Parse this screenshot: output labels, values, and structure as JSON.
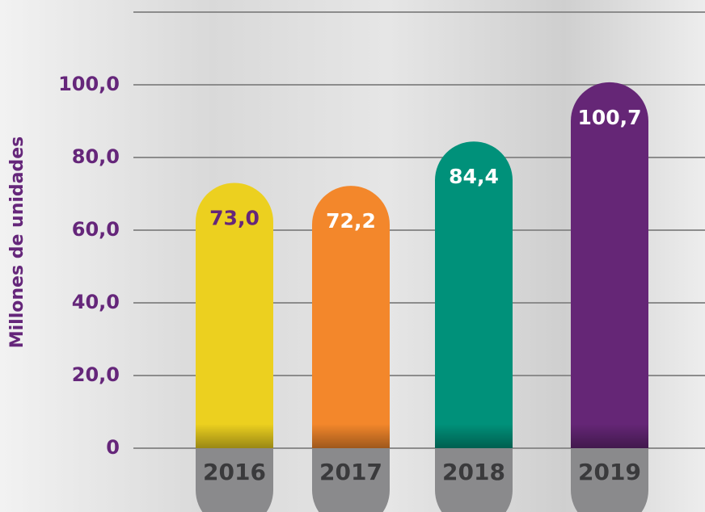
{
  "chart_data": {
    "type": "bar",
    "ylabel": "Millones de unidades",
    "categories": [
      "2016",
      "2017",
      "2018",
      "2019"
    ],
    "values": [
      73.0,
      72.2,
      84.4,
      100.7
    ],
    "value_labels": [
      "73,0",
      "72,2",
      "84,4",
      "100,7"
    ],
    "colors": [
      "#ecd01f",
      "#f3872b",
      "#00917a",
      "#652676"
    ],
    "value_label_colors": [
      "#65267a",
      "#ffffff",
      "#ffffff",
      "#ffffff"
    ],
    "ylim": [
      0,
      120
    ],
    "yticks": [
      0,
      {
        "value": 20,
        "label": "20,0"
      },
      {
        "value": 40,
        "label": "40,0"
      },
      {
        "value": 60,
        "label": "60,0"
      },
      {
        "value": 80,
        "label": "80,0"
      },
      {
        "value": 100,
        "label": "100,0"
      }
    ],
    "grid": true
  }
}
